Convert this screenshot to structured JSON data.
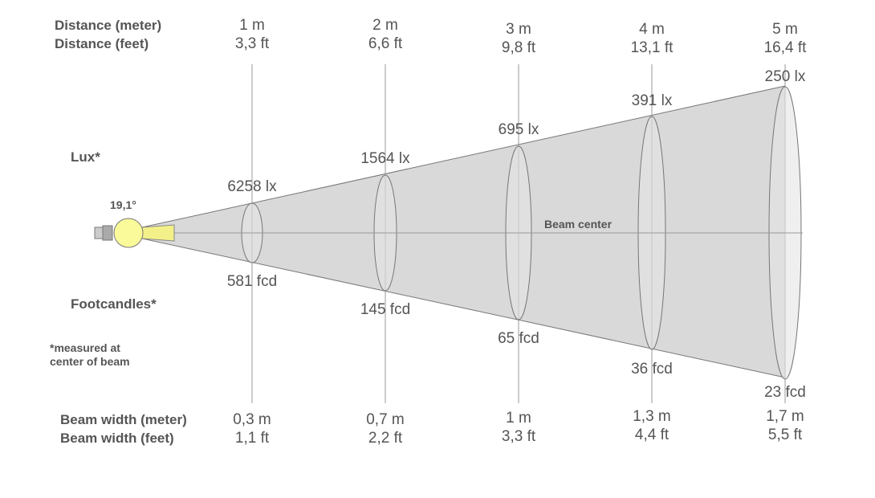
{
  "row_labels": {
    "distance_m": "Distance (meter)",
    "distance_ft": "Distance (feet)",
    "lux": "Lux*",
    "footcandles": "Footcandles*",
    "note_line1": "*measured at",
    "note_line2": "center of beam",
    "beam_width_m": "Beam width (meter)",
    "beam_width_ft": "Beam width (feet)"
  },
  "beam_angle": "19,1°",
  "beam_center_label": "Beam center",
  "colors": {
    "cone": "#d9d9d9",
    "bulb": "#fafa9a",
    "text": "#555555",
    "lines": "#999999"
  },
  "columns": [
    {
      "distance_m": "1 m",
      "distance_ft": "3,3 ft",
      "lux": "6258 lx",
      "fcd": "581 fcd",
      "width_m": "0,3 m",
      "width_ft": "1,1 ft"
    },
    {
      "distance_m": "2 m",
      "distance_ft": "6,6 ft",
      "lux": "1564 lx",
      "fcd": "145 fcd",
      "width_m": "0,7 m",
      "width_ft": "2,2 ft"
    },
    {
      "distance_m": "3 m",
      "distance_ft": "9,8 ft",
      "lux": "695 lx",
      "fcd": "65 fcd",
      "width_m": "1 m",
      "width_ft": "3,3 ft"
    },
    {
      "distance_m": "4 m",
      "distance_ft": "13,1 ft",
      "lux": "391 lx",
      "fcd": "36 fcd",
      "width_m": "1,3 m",
      "width_ft": "4,4 ft"
    },
    {
      "distance_m": "5 m",
      "distance_ft": "16,4 ft",
      "lux": "250 lx",
      "fcd": "23 fcd",
      "width_m": "1,7 m",
      "width_ft": "5,5 ft"
    }
  ]
}
